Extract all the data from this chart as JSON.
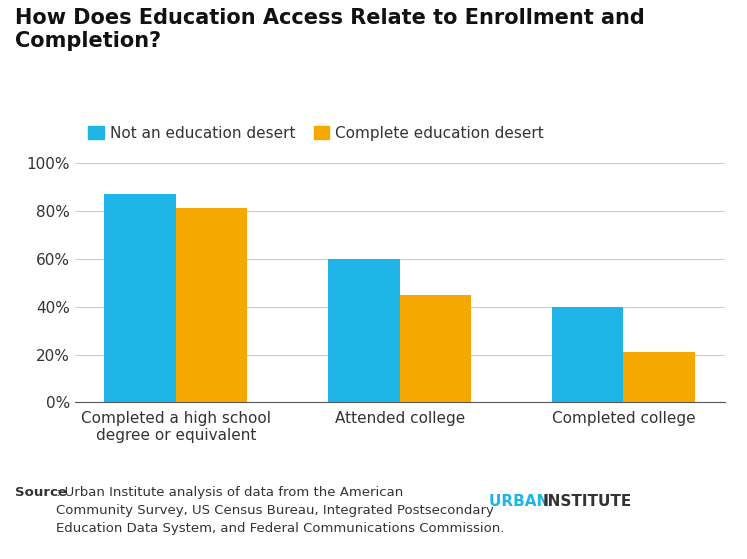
{
  "title_line1": "How Does Education Access Relate to Enrollment and",
  "title_line2": "Completion?",
  "categories": [
    "Completed a high school\ndegree or equivalent",
    "Attended college",
    "Completed college"
  ],
  "not_desert": [
    0.87,
    0.6,
    0.4
  ],
  "complete_desert": [
    0.81,
    0.45,
    0.21
  ],
  "color_not_desert": "#1EB4E8",
  "color_complete_desert": "#F5A800",
  "legend_label_1": "Not an education desert",
  "legend_label_2": "Complete education desert",
  "ylim": [
    0,
    1.05
  ],
  "yticks": [
    0,
    0.2,
    0.4,
    0.6,
    0.8,
    1.0
  ],
  "ytick_labels": [
    "0%",
    "20%",
    "40%",
    "60%",
    "80%",
    "100%"
  ],
  "background_color": "#ffffff",
  "title_fontsize": 15,
  "source_bold": "Source",
  "source_rest": ": Urban Institute analysis of data from the American\nCommunity Survey, US Census Bureau, Integrated Postsecondary\nEducation Data System, and Federal Communications Commission.",
  "brand_urban": "URBAN ",
  "brand_institute": "INSTITUTE",
  "brand_color_urban": "#1EB4E8",
  "brand_color_institute": "#333333"
}
